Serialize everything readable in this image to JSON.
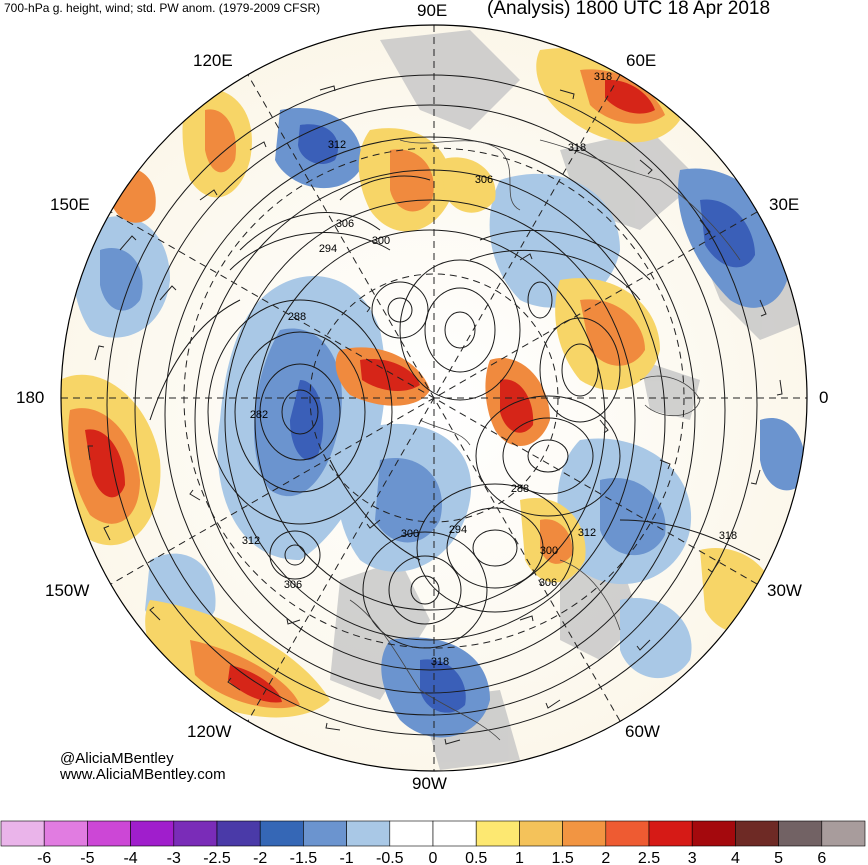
{
  "header": {
    "left_title": "700-hPa g. height, wind; std. PW anom. (1979-2009 CFSR)",
    "right_title": "(Analysis) 1800 UTC 18 Apr 2018"
  },
  "map": {
    "projection": "north-polar-stereographic",
    "longitude_labels": {
      "e90": "90E",
      "e60": "60E",
      "e30": "30E",
      "zero": "0",
      "w30": "30W",
      "w60": "60W",
      "w90": "90W",
      "w120": "120W",
      "w150": "150W",
      "d180": "180",
      "e150": "150E",
      "e120": "120E"
    },
    "contour_labels": [
      "318",
      "318",
      "312",
      "306",
      "306",
      "300",
      "294",
      "288",
      "282",
      "288",
      "294",
      "300",
      "312",
      "300",
      "306",
      "312",
      "306",
      "318",
      "318"
    ],
    "land_color": "#c8c8c8",
    "anomaly_colors": {
      "strong_negative": "#3a5fb8",
      "negative": "#6f98d0",
      "weak_negative": "#a9c8e6",
      "weak_positive": "#f7d567",
      "positive": "#f08a3e",
      "strong_positive": "#d62518"
    }
  },
  "credits": {
    "handle": "@AliciaMBentley",
    "website": "www.AliciaMBentley.com"
  },
  "colorbar": {
    "ticks": [
      "-6",
      "-5",
      "-4",
      "-3",
      "-2.5",
      "-2",
      "-1.5",
      "-1",
      "-0.5",
      "0",
      "0.5",
      "1",
      "1.5",
      "2",
      "2.5",
      "3",
      "4",
      "5",
      "6"
    ],
    "colors": [
      "#eab4ea",
      "#e17ce1",
      "#cc47d6",
      "#a01ecc",
      "#7a2cb8",
      "#4a3aa8",
      "#3567b6",
      "#6b94cf",
      "#a9c8e6",
      "#ffffff",
      "#ffffff",
      "#fde871",
      "#f4c25a",
      "#f29542",
      "#ee5b32",
      "#d61a16",
      "#a4090d",
      "#6e2a25",
      "#726264",
      "#a89c9c"
    ]
  }
}
